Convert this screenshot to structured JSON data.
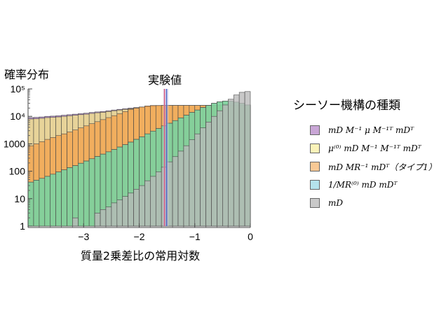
{
  "chart_data": {
    "type": "bar",
    "stacked_overlay_histogram": true,
    "ylabel": "確率分布",
    "xlabel": "質量2乗差比の常用対数",
    "yscale": "log",
    "xlim": [
      -4,
      0
    ],
    "ylim": [
      1,
      100000
    ],
    "xticks": [
      -3,
      -2,
      -1,
      0
    ],
    "xtick_labels": [
      "−3",
      "−2",
      "−1",
      "0"
    ],
    "yticks": [
      1,
      10,
      100,
      1000,
      10000,
      100000
    ],
    "ytick_labels": [
      "1",
      "10",
      "100",
      "1000",
      "10⁴",
      "10⁵"
    ],
    "experimental_value": {
      "label": "実験値",
      "x": -1.52,
      "band": [
        -1.57,
        -1.47
      ],
      "colors": [
        "#d75b83",
        "#4f67c7"
      ]
    },
    "bin_start": -4,
    "bin_width": 0.1,
    "series": [
      {
        "color": "#a271b8",
        "values": [
          9000,
          9200,
          9500,
          10000,
          10200,
          10500,
          11000,
          11500,
          12000,
          12500,
          13000,
          13800,
          14500,
          15000,
          16000,
          17000,
          18000,
          19000,
          20000,
          21000,
          22000,
          23000,
          24000,
          24500,
          25000,
          25000,
          25000,
          25000,
          25000,
          25000,
          25000,
          25000,
          25000,
          25000,
          25000,
          25000,
          25000,
          25000,
          25000,
          25000
        ]
      },
      {
        "color": "#f5e58c",
        "values": [
          8000,
          8200,
          8500,
          9000,
          9200,
          9500,
          10000,
          10500,
          11000,
          11500,
          12000,
          12800,
          13500,
          14000,
          15000,
          16000,
          17000,
          18000,
          19000,
          20000,
          21000,
          22000,
          23000,
          24000,
          25000,
          25000,
          25000,
          25000,
          25000,
          25000,
          25000,
          25000,
          25000,
          25000,
          25000,
          25000,
          25000,
          25000,
          25000,
          25000
        ]
      },
      {
        "color": "#f4a44d",
        "values": [
          850,
          1000,
          1200,
          1450,
          1700,
          2000,
          2300,
          2700,
          3200,
          3800,
          4500,
          5400,
          6400,
          7600,
          9000,
          10600,
          12500,
          15000,
          18000,
          20000,
          22000,
          24000,
          25000,
          25000,
          25000,
          25000,
          25000,
          25000,
          25000,
          25000,
          25000,
          25000,
          25000,
          25000,
          25000,
          25000,
          25000,
          25000,
          25000,
          25000
        ]
      },
      {
        "color": "#85d3e0",
        "values": [
          40,
          47,
          55,
          65,
          78,
          94,
          112,
          135,
          160,
          195,
          235,
          285,
          345,
          420,
          510,
          620,
          760,
          930,
          1150,
          1450,
          1800,
          2300,
          2900,
          3600,
          4500,
          5600,
          7000,
          8800,
          11000,
          14000,
          17000,
          21000,
          25000,
          30000,
          34000,
          36000,
          36000,
          33000,
          30000,
          26000
        ]
      },
      {
        "color": "#7fcf8e",
        "values": [
          40,
          47,
          55,
          65,
          78,
          94,
          112,
          135,
          160,
          195,
          235,
          285,
          345,
          420,
          510,
          620,
          760,
          930,
          1150,
          1450,
          1800,
          2300,
          2900,
          3600,
          4500,
          5600,
          7000,
          8800,
          11000,
          14000,
          17000,
          21000,
          25000,
          30000,
          34000,
          36000,
          36000,
          33000,
          30000,
          26000
        ]
      },
      {
        "color": "#b9b9b9",
        "values": [
          0,
          0,
          0,
          0,
          0,
          0,
          0,
          0,
          2,
          0,
          0,
          0,
          3,
          4,
          5,
          7,
          9,
          12,
          16,
          22,
          30,
          45,
          65,
          95,
          140,
          220,
          340,
          540,
          850,
          1400,
          2300,
          3800,
          6200,
          10000,
          16000,
          26000,
          42000,
          60000,
          75000,
          80000
        ]
      }
    ],
    "legend": {
      "title": "シーソー機構の種類",
      "entries": [
        {
          "color": "#c9a6d6",
          "label": "mD M⁻¹ μ M⁻¹ᵀ mDᵀ"
        },
        {
          "color": "#fbf3b9",
          "label": "μ⁽⁰⁾ mD M⁻¹ M⁻¹ᵀ mDᵀ"
        },
        {
          "color": "#f8c995",
          "label": "mD MR⁻¹ mDᵀ（タイプ1）"
        },
        {
          "color": "#b5e3ec",
          "label": "1/MR⁽⁰⁾ mD mDᵀ"
        },
        {
          "color": "#c9c9c9",
          "label": "mD"
        }
      ]
    }
  }
}
